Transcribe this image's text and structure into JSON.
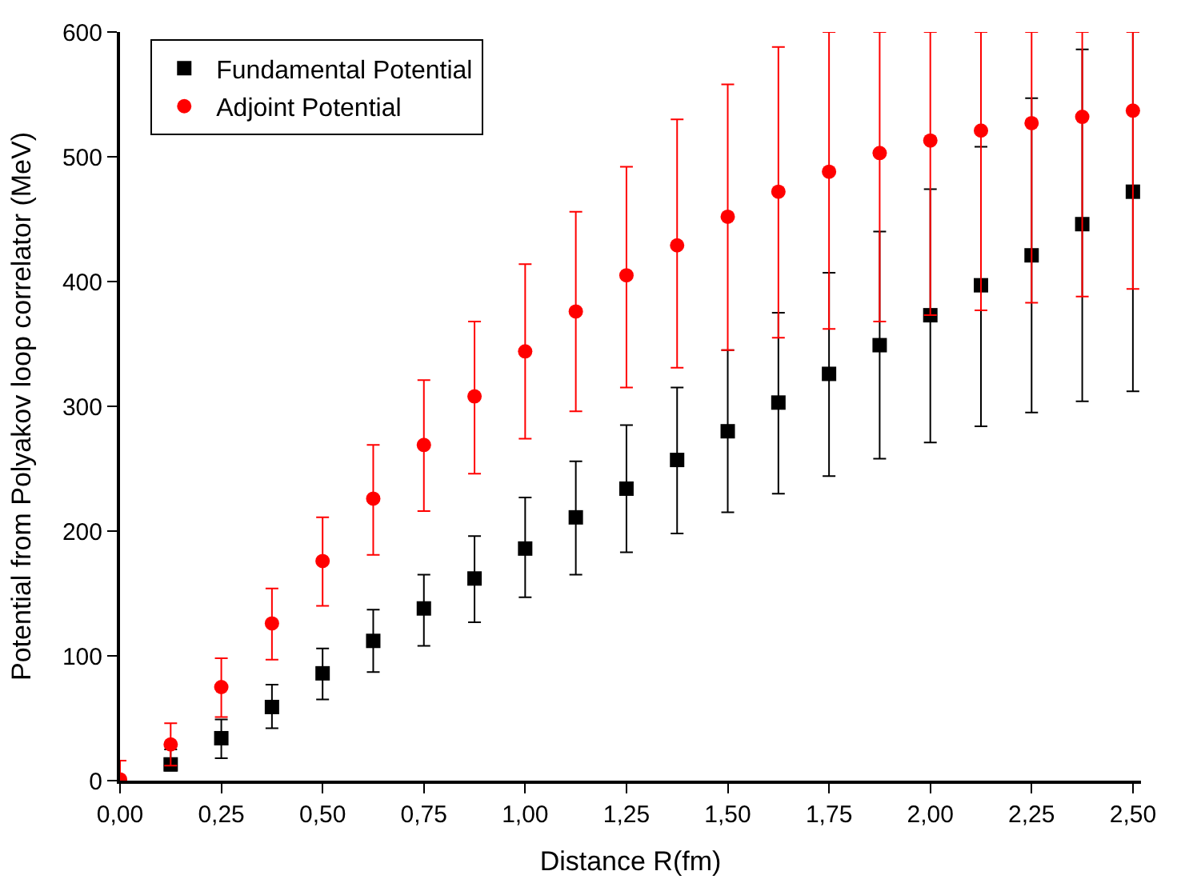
{
  "chart_data": {
    "type": "scatter",
    "xlabel": "Distance R(fm)",
    "ylabel": "Potential from Polyakov loop correlator (MeV)",
    "xlim": [
      0,
      2.52
    ],
    "ylim": [
      0,
      600
    ],
    "xticks": [
      {
        "value": 0,
        "label": "0,00"
      },
      {
        "value": 0.25,
        "label": "0,25"
      },
      {
        "value": 0.5,
        "label": "0,50"
      },
      {
        "value": 0.75,
        "label": "0,75"
      },
      {
        "value": 1,
        "label": "1,00"
      },
      {
        "value": 1.25,
        "label": "1,25"
      },
      {
        "value": 1.5,
        "label": "1,50"
      },
      {
        "value": 1.75,
        "label": "1,75"
      },
      {
        "value": 2,
        "label": "2,00"
      },
      {
        "value": 2.25,
        "label": "2,25"
      },
      {
        "value": 2.5,
        "label": "2,50"
      }
    ],
    "yticks": [
      0,
      100,
      200,
      300,
      400,
      500,
      600
    ],
    "legend": "top left",
    "series": [
      {
        "name": "Fundamental Potential",
        "color": "#000000",
        "marker": "square",
        "x": [
          0.125,
          0.25,
          0.375,
          0.5,
          0.625,
          0.75,
          0.875,
          1.0,
          1.125,
          1.25,
          1.375,
          1.5,
          1.625,
          1.75,
          1.875,
          2.0,
          2.125,
          2.25,
          2.375,
          2.5
        ],
        "values": [
          13,
          34,
          59,
          86,
          112,
          138,
          162,
          186,
          211,
          234,
          257,
          280,
          303,
          326,
          349,
          373,
          397,
          421,
          446,
          472
        ],
        "errors": [
          [
            8,
            25
          ],
          [
            18,
            49
          ],
          [
            42,
            77
          ],
          [
            65,
            106
          ],
          [
            87,
            137
          ],
          [
            108,
            165
          ],
          [
            127,
            196
          ],
          [
            147,
            227
          ],
          [
            165,
            256
          ],
          [
            183,
            285
          ],
          [
            198,
            315
          ],
          [
            215,
            345
          ],
          [
            230,
            375
          ],
          [
            244,
            407
          ],
          [
            258,
            440
          ],
          [
            271,
            474
          ],
          [
            284,
            508
          ],
          [
            295,
            547
          ],
          [
            304,
            586
          ],
          [
            312,
            600
          ]
        ]
      },
      {
        "name": "Adjoint Potential",
        "color": "#ff0000",
        "marker": "circle",
        "x": [
          0,
          0.125,
          0.25,
          0.375,
          0.5,
          0.625,
          0.75,
          0.875,
          1.0,
          1.125,
          1.25,
          1.375,
          1.5,
          1.625,
          1.75,
          1.875,
          2.0,
          2.125,
          2.25,
          2.375,
          2.5
        ],
        "values": [
          1,
          29,
          75,
          126,
          176,
          226,
          269,
          308,
          344,
          376,
          405,
          429,
          452,
          472,
          488,
          503,
          513,
          521,
          527,
          532,
          537
        ],
        "errors": [
          [
            0,
            16
          ],
          [
            12,
            46
          ],
          [
            51,
            98
          ],
          [
            97,
            154
          ],
          [
            140,
            211
          ],
          [
            181,
            269
          ],
          [
            216,
            321
          ],
          [
            246,
            368
          ],
          [
            274,
            414
          ],
          [
            296,
            456
          ],
          [
            315,
            492
          ],
          [
            331,
            530
          ],
          [
            345,
            558
          ],
          [
            355,
            588
          ],
          [
            362,
            600
          ],
          [
            368,
            600
          ],
          [
            373,
            600
          ],
          [
            377,
            600
          ],
          [
            383,
            600
          ],
          [
            388,
            600
          ],
          [
            394,
            600
          ]
        ]
      }
    ]
  }
}
